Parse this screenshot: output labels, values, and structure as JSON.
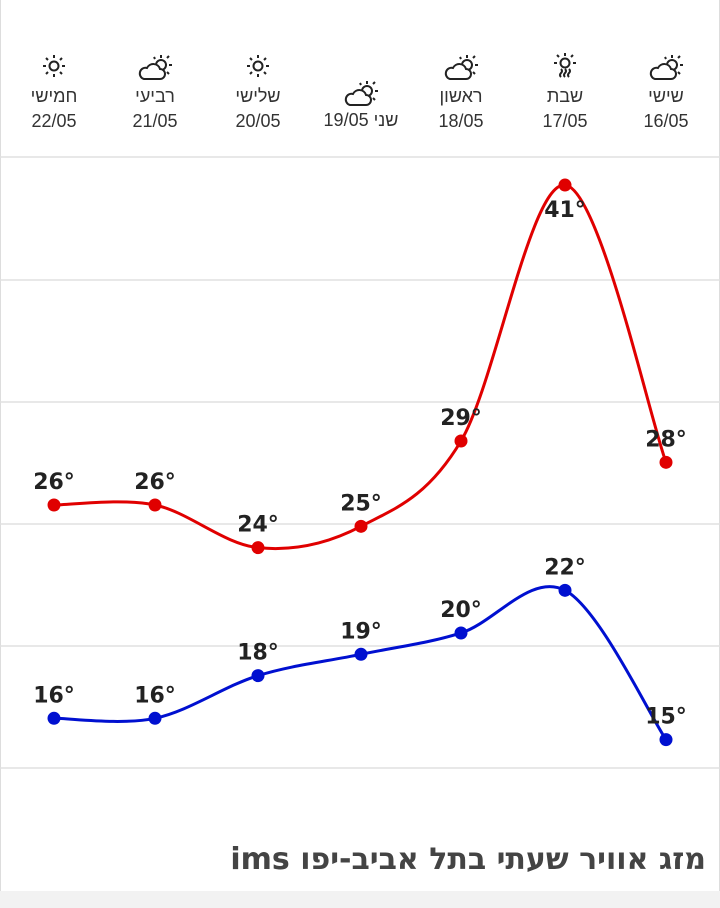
{
  "days": [
    {
      "name": "שישי",
      "date": "16/05",
      "icon": "partly-cloudy-icon",
      "max": 28,
      "min": 15
    },
    {
      "name": "שבת",
      "date": "17/05",
      "icon": "hot-sun-icon",
      "max": 41,
      "min": 22
    },
    {
      "name": "ראשון",
      "date": "18/05",
      "icon": "partly-cloudy-icon",
      "max": 29,
      "min": 20
    },
    {
      "name": "שני",
      "date": "19/05",
      "icon": "partly-cloudy-icon",
      "max": 25,
      "min": 19
    },
    {
      "name": "שלישי",
      "date": "20/05",
      "icon": "sun-icon",
      "max": 24,
      "min": 18
    },
    {
      "name": "רביעי",
      "date": "21/05",
      "icon": "partly-cloudy-icon",
      "max": 26,
      "min": 16
    },
    {
      "name": "חמישי",
      "date": "22/05",
      "icon": "sun-icon",
      "max": 26,
      "min": 16
    }
  ],
  "degree_symbol": "°",
  "colors": {
    "max": "#e00000",
    "min": "#0010d0",
    "grid": "#e0e0e0"
  },
  "title": "מזג אוויר שעתי בתל אביב-יפו ims",
  "chart_data": {
    "type": "line",
    "categories": [
      "16/05",
      "17/05",
      "18/05",
      "19/05",
      "20/05",
      "21/05",
      "22/05"
    ],
    "series": [
      {
        "name": "max",
        "values": [
          28,
          41,
          29,
          25,
          24,
          26,
          26
        ]
      },
      {
        "name": "min",
        "values": [
          15,
          22,
          20,
          19,
          18,
          16,
          16
        ]
      }
    ],
    "unit": "°"
  }
}
